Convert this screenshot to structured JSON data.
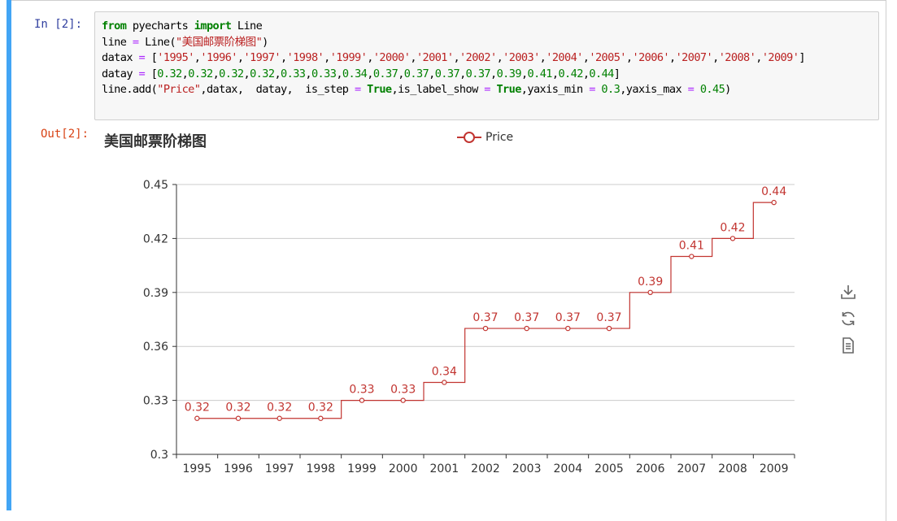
{
  "input_prompt": "In  [2]:",
  "output_prompt": "Out[2]:",
  "code": {
    "line1": [
      {
        "t": "from",
        "c": "kw"
      },
      {
        "t": " pyecharts ",
        "c": ""
      },
      {
        "t": "import",
        "c": "kw"
      },
      {
        "t": " Line",
        "c": ""
      }
    ],
    "line2": [
      {
        "t": "line ",
        "c": ""
      },
      {
        "t": "=",
        "c": "op"
      },
      {
        "t": " Line(",
        "c": ""
      },
      {
        "t": "\"美国邮票阶梯图\"",
        "c": "str"
      },
      {
        "t": ")",
        "c": ""
      }
    ],
    "line3": [
      {
        "t": "datax ",
        "c": ""
      },
      {
        "t": "=",
        "c": "op"
      },
      {
        "t": " [",
        "c": ""
      },
      {
        "t": "'1995'",
        "c": "str"
      },
      {
        "t": ",",
        "c": ""
      },
      {
        "t": "'1996'",
        "c": "str"
      },
      {
        "t": ",",
        "c": ""
      },
      {
        "t": "'1997'",
        "c": "str"
      },
      {
        "t": ",",
        "c": ""
      },
      {
        "t": "'1998'",
        "c": "str"
      },
      {
        "t": ",",
        "c": ""
      },
      {
        "t": "'1999'",
        "c": "str"
      },
      {
        "t": ",",
        "c": ""
      },
      {
        "t": "'2000'",
        "c": "str"
      },
      {
        "t": ",",
        "c": ""
      },
      {
        "t": "'2001'",
        "c": "str"
      },
      {
        "t": ",",
        "c": ""
      },
      {
        "t": "'2002'",
        "c": "str"
      },
      {
        "t": ",",
        "c": ""
      },
      {
        "t": "'2003'",
        "c": "str"
      },
      {
        "t": ",",
        "c": ""
      },
      {
        "t": "'2004'",
        "c": "str"
      },
      {
        "t": ",",
        "c": ""
      },
      {
        "t": "'2005'",
        "c": "str"
      },
      {
        "t": ",",
        "c": ""
      },
      {
        "t": "'2006'",
        "c": "str"
      },
      {
        "t": ",",
        "c": ""
      },
      {
        "t": "'2007'",
        "c": "str"
      },
      {
        "t": ",",
        "c": ""
      },
      {
        "t": "'2008'",
        "c": "str"
      },
      {
        "t": ",",
        "c": ""
      },
      {
        "t": "'2009'",
        "c": "str"
      },
      {
        "t": "]",
        "c": ""
      }
    ],
    "line4": [
      {
        "t": "datay ",
        "c": ""
      },
      {
        "t": "=",
        "c": "op"
      },
      {
        "t": " [",
        "c": ""
      },
      {
        "t": "0.32",
        "c": "num"
      },
      {
        "t": ",",
        "c": ""
      },
      {
        "t": "0.32",
        "c": "num"
      },
      {
        "t": ",",
        "c": ""
      },
      {
        "t": "0.32",
        "c": "num"
      },
      {
        "t": ",",
        "c": ""
      },
      {
        "t": "0.32",
        "c": "num"
      },
      {
        "t": ",",
        "c": ""
      },
      {
        "t": "0.33",
        "c": "num"
      },
      {
        "t": ",",
        "c": ""
      },
      {
        "t": "0.33",
        "c": "num"
      },
      {
        "t": ",",
        "c": ""
      },
      {
        "t": "0.34",
        "c": "num"
      },
      {
        "t": ",",
        "c": ""
      },
      {
        "t": "0.37",
        "c": "num"
      },
      {
        "t": ",",
        "c": ""
      },
      {
        "t": "0.37",
        "c": "num"
      },
      {
        "t": ",",
        "c": ""
      },
      {
        "t": "0.37",
        "c": "num"
      },
      {
        "t": ",",
        "c": ""
      },
      {
        "t": "0.37",
        "c": "num"
      },
      {
        "t": ",",
        "c": ""
      },
      {
        "t": "0.39",
        "c": "num"
      },
      {
        "t": ",",
        "c": ""
      },
      {
        "t": "0.41",
        "c": "num"
      },
      {
        "t": ",",
        "c": ""
      },
      {
        "t": "0.42",
        "c": "num"
      },
      {
        "t": ",",
        "c": ""
      },
      {
        "t": "0.44",
        "c": "num"
      },
      {
        "t": "]",
        "c": ""
      }
    ],
    "line5": [
      {
        "t": "line.add(",
        "c": ""
      },
      {
        "t": "\"Price\"",
        "c": "str"
      },
      {
        "t": ",datax,  datay,  is_step ",
        "c": ""
      },
      {
        "t": "=",
        "c": "op"
      },
      {
        "t": " ",
        "c": ""
      },
      {
        "t": "True",
        "c": "kw"
      },
      {
        "t": ",is_label_show ",
        "c": ""
      },
      {
        "t": "=",
        "c": "op"
      },
      {
        "t": " ",
        "c": ""
      },
      {
        "t": "True",
        "c": "kw"
      },
      {
        "t": ",yaxis_min ",
        "c": ""
      },
      {
        "t": "=",
        "c": "op"
      },
      {
        "t": " ",
        "c": ""
      },
      {
        "t": "0.3",
        "c": "num"
      },
      {
        "t": ",yaxis_max ",
        "c": ""
      },
      {
        "t": "=",
        "c": "op"
      },
      {
        "t": " ",
        "c": ""
      },
      {
        "t": "0.45",
        "c": "num"
      },
      {
        "t": ")",
        "c": ""
      }
    ]
  },
  "toolbox": {
    "icons": [
      "download-icon",
      "refresh-icon",
      "data-view-icon"
    ]
  },
  "colors": {
    "series": "#c23531",
    "cell_bar": "#42a5f5"
  },
  "chart_data": {
    "type": "line",
    "step": true,
    "title": "美国邮票阶梯图",
    "legend": "Price",
    "legend_position": "top-center",
    "categories": [
      "1995",
      "1996",
      "1997",
      "1998",
      "1999",
      "2000",
      "2001",
      "2002",
      "2003",
      "2004",
      "2005",
      "2006",
      "2007",
      "2008",
      "2009"
    ],
    "series": [
      {
        "name": "Price",
        "values": [
          0.32,
          0.32,
          0.32,
          0.32,
          0.33,
          0.33,
          0.34,
          0.37,
          0.37,
          0.37,
          0.37,
          0.39,
          0.41,
          0.42,
          0.44
        ]
      }
    ],
    "labels": [
      "0.32",
      "0.32",
      "0.32",
      "0.32",
      "0.33",
      "0.33",
      "0.34",
      "0.37",
      "0.37",
      "0.37",
      "0.37",
      "0.39",
      "0.41",
      "0.42",
      "0.44"
    ],
    "ylim": [
      0.3,
      0.45
    ],
    "yticks": [
      "0.3",
      "0.33",
      "0.36",
      "0.39",
      "0.42",
      "0.45"
    ],
    "grid": true
  }
}
